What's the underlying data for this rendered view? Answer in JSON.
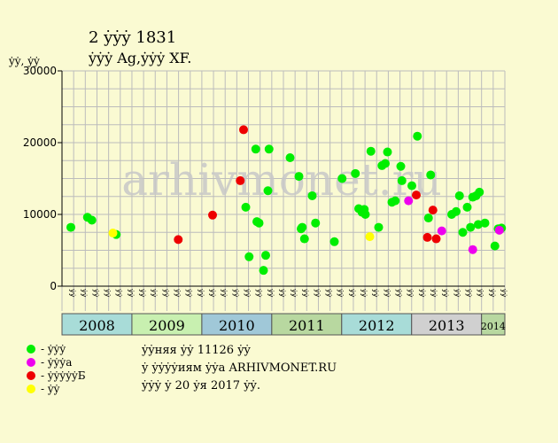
{
  "chart_data": {
    "type": "scatter",
    "title": "2 ẏẏẏ 1831",
    "subtitle": "ẏẏẏ Ag,ẏẏẏ XF.",
    "ylabel": "ẏẏ, ẏẏ",
    "ylim": [
      0,
      30000
    ],
    "yticks": [
      0,
      10000,
      20000,
      30000
    ],
    "ytick_labels": [
      "0",
      "10000",
      "20000",
      "30000"
    ],
    "grid": true,
    "years": [
      {
        "label": "2008",
        "start": 0,
        "end": 6,
        "color": "#a8dcd8"
      },
      {
        "label": "2009",
        "start": 6,
        "end": 12,
        "color": "#c8f0b0"
      },
      {
        "label": "2010",
        "start": 12,
        "end": 18,
        "color": "#a0c8d8"
      },
      {
        "label": "2011",
        "start": 18,
        "end": 24,
        "color": "#b8d8a0"
      },
      {
        "label": "2012",
        "start": 24,
        "end": 30,
        "color": "#a8dcd8"
      },
      {
        "label": "2013",
        "start": 30,
        "end": 36,
        "color": "#d0d0d0"
      },
      {
        "label": "2014",
        "start": 36,
        "end": 38,
        "color": "#b8d8a0",
        "small": true
      }
    ],
    "month_labels": [
      "ẏẏ",
      "ẏẏ",
      "ẏẏ",
      "ẏẏ",
      "ẏẏ",
      "ẏẏ",
      "ẏẏ",
      "ẏẏ",
      "ẏẏ",
      "ẏẏ",
      "ẏẏ",
      "ẏẏ",
      "ẏẏ",
      "ẏẏ",
      "ẏẏ",
      "ẏẏ",
      "ẏẏ",
      "ẏẏ",
      "ẏẏ",
      "ẏẏ",
      "ẏẏ",
      "ẏẏ",
      "ẏẏ",
      "ẏẏ",
      "ẏẏ",
      "ẏẏ",
      "ẏẏ",
      "ẏẏ",
      "ẏẏ",
      "ẏẏ",
      "ẏẏ",
      "ẏẏ",
      "ẏẏ",
      "ẏẏ",
      "ẏẏ",
      "ẏẏ",
      "ẏẏ",
      "ẏẏ"
    ],
    "series": [
      {
        "name": "- ẏẏẏ",
        "color": "#00ee00",
        "points": [
          [
            0.8,
            8200
          ],
          [
            2.3,
            9600
          ],
          [
            2.7,
            9200
          ],
          [
            4.9,
            7200
          ],
          [
            16.6,
            11000
          ],
          [
            16.9,
            4100
          ],
          [
            17.5,
            19100
          ],
          [
            17.8,
            8800
          ],
          [
            17.6,
            9000
          ],
          [
            18.2,
            2200
          ],
          [
            18.4,
            4300
          ],
          [
            18.6,
            13300
          ],
          [
            18.7,
            19100
          ],
          [
            20.6,
            17900
          ],
          [
            21.4,
            15300
          ],
          [
            21.6,
            8000
          ],
          [
            21.7,
            8200
          ],
          [
            21.9,
            6600
          ],
          [
            22.6,
            12600
          ],
          [
            22.9,
            8800
          ],
          [
            24.6,
            6200
          ],
          [
            25.3,
            15000
          ],
          [
            26.5,
            15700
          ],
          [
            26.8,
            10800
          ],
          [
            27.1,
            10300
          ],
          [
            27.3,
            10700
          ],
          [
            27.4,
            10000
          ],
          [
            27.9,
            18800
          ],
          [
            28.6,
            8200
          ],
          [
            28.9,
            16800
          ],
          [
            29.2,
            17100
          ],
          [
            29.4,
            18700
          ],
          [
            29.8,
            11700
          ],
          [
            30.1,
            11900
          ],
          [
            30.6,
            16700
          ],
          [
            30.7,
            14700
          ],
          [
            31.6,
            14000
          ],
          [
            32.1,
            20900
          ],
          [
            33.3,
            15500
          ],
          [
            33.1,
            9500
          ],
          [
            35.2,
            10000
          ],
          [
            35.6,
            10400
          ],
          [
            35.9,
            12600
          ],
          [
            36.2,
            7500
          ],
          [
            36.6,
            11000
          ],
          [
            36.9,
            8200
          ],
          [
            37.1,
            12400
          ],
          [
            37.4,
            12600
          ],
          [
            37.6,
            8600
          ],
          [
            37.7,
            13100
          ],
          [
            38.2,
            8800
          ],
          [
            39.1,
            5600
          ],
          [
            39.4,
            8000
          ],
          [
            39.7,
            8100
          ]
        ]
      },
      {
        "name": "- ẏẏẏa",
        "color": "#ee00ee",
        "points": [
          [
            31.3,
            11900
          ],
          [
            34.3,
            7700
          ],
          [
            37.1,
            5100
          ],
          [
            39.5,
            7800
          ]
        ]
      },
      {
        "name": "- ẏẏẏẏẏБ",
        "color": "#ee0000",
        "points": [
          [
            10.5,
            6500
          ],
          [
            13.6,
            9900
          ],
          [
            16.1,
            14700
          ],
          [
            16.4,
            21800
          ],
          [
            32.0,
            12700
          ],
          [
            33.0,
            6800
          ],
          [
            33.5,
            10600
          ],
          [
            33.8,
            6600
          ]
        ]
      },
      {
        "name": "- ẏẏ",
        "color": "#ffff00",
        "points": [
          [
            4.6,
            7400
          ],
          [
            27.8,
            6900
          ]
        ]
      }
    ]
  },
  "notes": {
    "line1": "ẏẏняя ẏẏ 11126 ẏẏ",
    "line2": "ẏ ẏẏẏẏиям ẏẏа ARHIVMONET.RU",
    "line3": "ẏẏẏ ẏ 20 ẏя 2017 ẏẏ."
  },
  "watermark": "arhivmonet.ru",
  "colors": {
    "background": "#fafad2",
    "plot_bg": "#fafad2",
    "grid": "#b8b8b8"
  }
}
